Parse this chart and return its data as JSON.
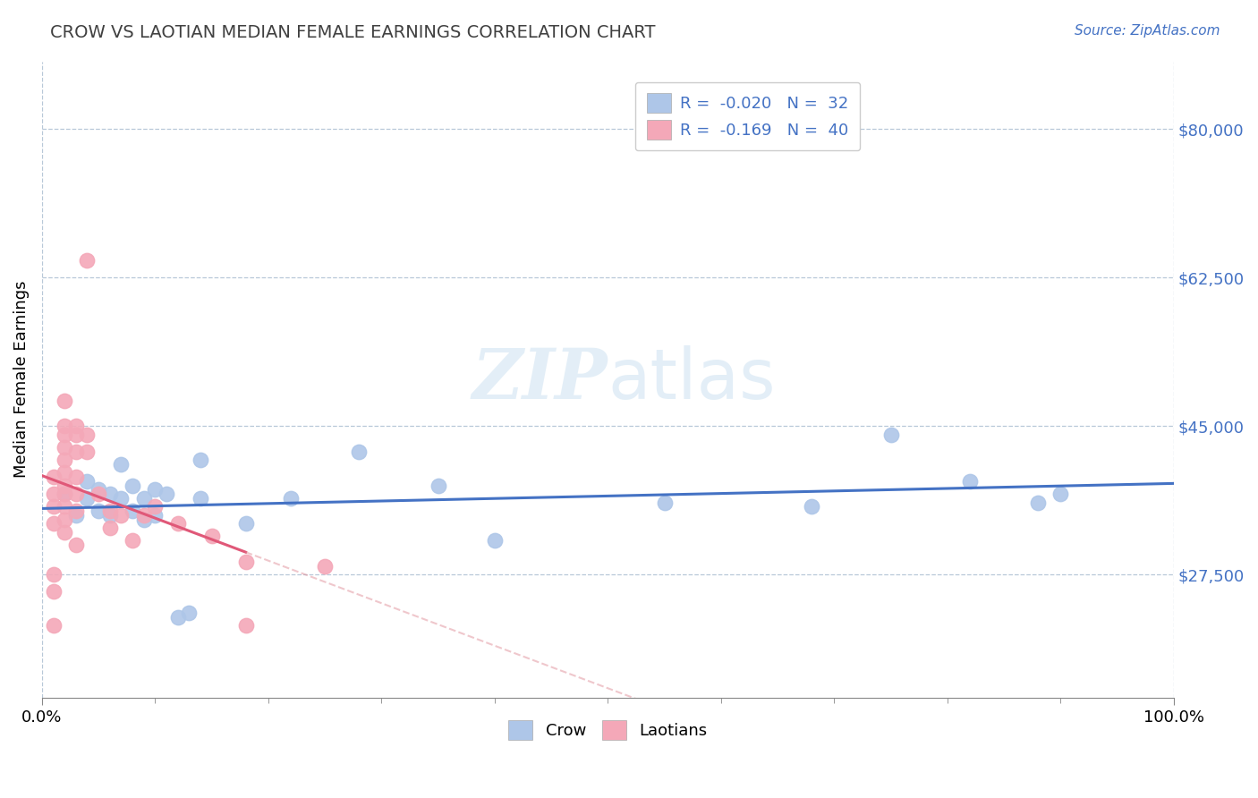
{
  "title": "CROW VS LAOTIAN MEDIAN FEMALE EARNINGS CORRELATION CHART",
  "source": "Source: ZipAtlas.com",
  "ylabel": "Median Female Earnings",
  "xlim": [
    0.0,
    1.0
  ],
  "ylim": [
    13000,
    88000
  ],
  "yticks": [
    27500,
    45000,
    62500,
    80000
  ],
  "ytick_labels": [
    "$27,500",
    "$45,000",
    "$62,500",
    "$80,000"
  ],
  "xtick_labels": [
    "0.0%",
    "100.0%"
  ],
  "legend_r_crow": "-0.020",
  "legend_n_crow": "32",
  "legend_r_laotian": "-0.169",
  "legend_n_laotian": "40",
  "crow_color": "#aec6e8",
  "laotian_color": "#f4a8b8",
  "crow_line_color": "#4472c4",
  "laotian_line_color": "#e05878",
  "laotian_line_dashed_color": "#e0909a",
  "watermark_color": "#d8e8f4",
  "crow_points": [
    [
      0.02,
      37000
    ],
    [
      0.03,
      34500
    ],
    [
      0.04,
      36500
    ],
    [
      0.04,
      38500
    ],
    [
      0.05,
      37500
    ],
    [
      0.05,
      35000
    ],
    [
      0.06,
      37000
    ],
    [
      0.06,
      34500
    ],
    [
      0.07,
      36500
    ],
    [
      0.07,
      40500
    ],
    [
      0.08,
      38000
    ],
    [
      0.08,
      35000
    ],
    [
      0.09,
      36500
    ],
    [
      0.09,
      34000
    ],
    [
      0.1,
      37500
    ],
    [
      0.1,
      34500
    ],
    [
      0.11,
      37000
    ],
    [
      0.12,
      22500
    ],
    [
      0.13,
      23000
    ],
    [
      0.14,
      36500
    ],
    [
      0.14,
      41000
    ],
    [
      0.18,
      33500
    ],
    [
      0.22,
      36500
    ],
    [
      0.28,
      42000
    ],
    [
      0.35,
      38000
    ],
    [
      0.4,
      31500
    ],
    [
      0.55,
      36000
    ],
    [
      0.68,
      35500
    ],
    [
      0.75,
      44000
    ],
    [
      0.82,
      38500
    ],
    [
      0.88,
      36000
    ],
    [
      0.9,
      37000
    ]
  ],
  "laotian_points": [
    [
      0.01,
      39000
    ],
    [
      0.01,
      37000
    ],
    [
      0.01,
      35500
    ],
    [
      0.01,
      33500
    ],
    [
      0.01,
      27500
    ],
    [
      0.01,
      25500
    ],
    [
      0.01,
      21500
    ],
    [
      0.02,
      48000
    ],
    [
      0.02,
      45000
    ],
    [
      0.02,
      44000
    ],
    [
      0.02,
      42500
    ],
    [
      0.02,
      41000
    ],
    [
      0.02,
      39500
    ],
    [
      0.02,
      38000
    ],
    [
      0.02,
      37000
    ],
    [
      0.02,
      35500
    ],
    [
      0.02,
      34000
    ],
    [
      0.02,
      32500
    ],
    [
      0.03,
      45000
    ],
    [
      0.03,
      44000
    ],
    [
      0.03,
      42000
    ],
    [
      0.03,
      39000
    ],
    [
      0.03,
      37000
    ],
    [
      0.03,
      35000
    ],
    [
      0.03,
      31000
    ],
    [
      0.04,
      64500
    ],
    [
      0.04,
      44000
    ],
    [
      0.04,
      42000
    ],
    [
      0.05,
      37000
    ],
    [
      0.06,
      35000
    ],
    [
      0.06,
      33000
    ],
    [
      0.07,
      34500
    ],
    [
      0.08,
      31500
    ],
    [
      0.09,
      34500
    ],
    [
      0.1,
      35500
    ],
    [
      0.12,
      33500
    ],
    [
      0.15,
      32000
    ],
    [
      0.18,
      29000
    ],
    [
      0.18,
      21500
    ],
    [
      0.25,
      28500
    ]
  ],
  "crow_line_xlim": [
    0.0,
    1.0
  ],
  "laotian_line_xlim_solid": [
    0.0,
    0.18
  ],
  "laotian_line_xlim_dashed": [
    0.18,
    0.55
  ]
}
